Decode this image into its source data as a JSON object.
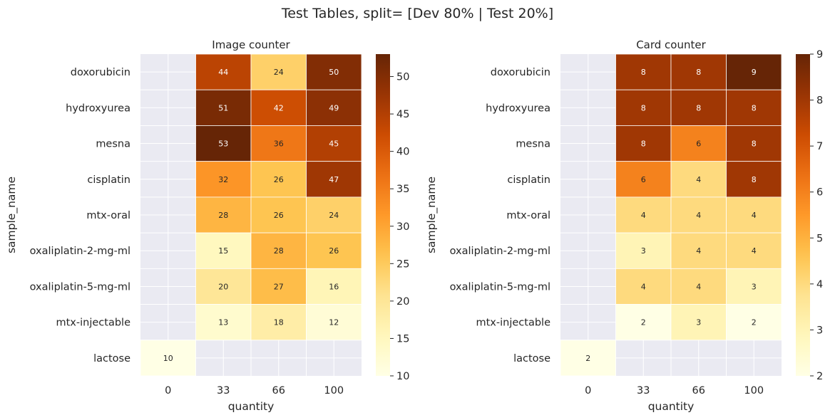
{
  "suptitle": "Test Tables, split= [Dev 80% | Test 20%]",
  "colormap": {
    "name": "YlOrBr",
    "missing_color": "#eaeaf2",
    "grid_color": "#ffffff",
    "dark_text": "#262626",
    "light_text": "#ffffff"
  },
  "chart_data": [
    {
      "type": "heatmap",
      "title": "Image counter",
      "xlabel": "quantity",
      "ylabel": "sample_name",
      "x": [
        "0",
        "33",
        "66",
        "100"
      ],
      "y": [
        "doxorubicin",
        "hydroxyurea",
        "mesna",
        "cisplatin",
        "mtx-oral",
        "oxaliplatin-2-mg-ml",
        "oxaliplatin-5-mg-ml",
        "mtx-injectable",
        "lactose"
      ],
      "values": [
        [
          null,
          44,
          24,
          50
        ],
        [
          null,
          51,
          42,
          49
        ],
        [
          null,
          53,
          36,
          45
        ],
        [
          null,
          32,
          26,
          47
        ],
        [
          null,
          28,
          26,
          24
        ],
        [
          null,
          15,
          28,
          26
        ],
        [
          null,
          20,
          27,
          16
        ],
        [
          null,
          13,
          18,
          12
        ],
        [
          10,
          null,
          null,
          null
        ]
      ],
      "vmin": 10,
      "vmax": 53,
      "colorbar_ticks": [
        10,
        15,
        20,
        25,
        30,
        35,
        40,
        45,
        50
      ]
    },
    {
      "type": "heatmap",
      "title": "Card counter",
      "xlabel": "quantity",
      "ylabel": "sample_name",
      "x": [
        "0",
        "33",
        "66",
        "100"
      ],
      "y": [
        "doxorubicin",
        "hydroxyurea",
        "mesna",
        "cisplatin",
        "mtx-oral",
        "oxaliplatin-2-mg-ml",
        "oxaliplatin-5-mg-ml",
        "mtx-injectable",
        "lactose"
      ],
      "values": [
        [
          null,
          8,
          8,
          9
        ],
        [
          null,
          8,
          8,
          8
        ],
        [
          null,
          8,
          6,
          8
        ],
        [
          null,
          6,
          4,
          8
        ],
        [
          null,
          4,
          4,
          4
        ],
        [
          null,
          3,
          4,
          4
        ],
        [
          null,
          4,
          4,
          3
        ],
        [
          null,
          2,
          3,
          2
        ],
        [
          2,
          null,
          null,
          null
        ]
      ],
      "vmin": 2,
      "vmax": 9,
      "colorbar_ticks": [
        2,
        3,
        4,
        5,
        6,
        7,
        8,
        9
      ]
    }
  ]
}
